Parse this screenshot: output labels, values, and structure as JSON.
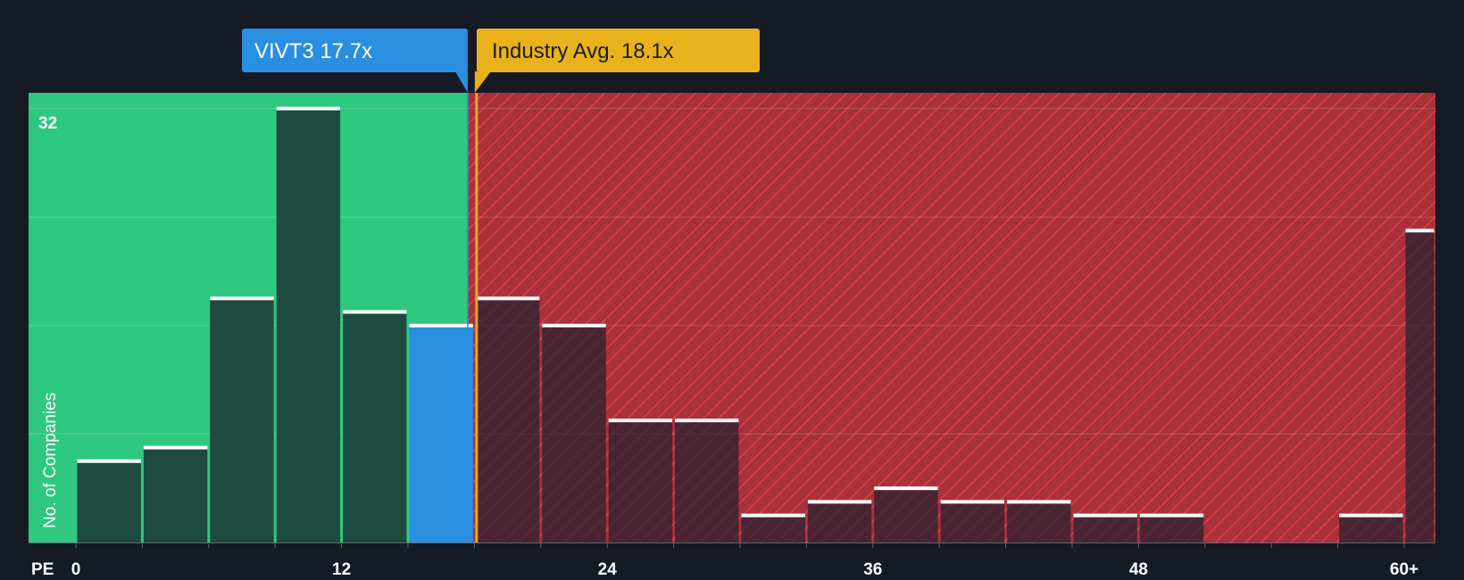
{
  "chart_data": {
    "type": "bar",
    "x_axis_label": "PE",
    "y_axis_label": "No. of Companies",
    "x_ticks": [
      "0",
      "12",
      "24",
      "36",
      "48",
      "60+"
    ],
    "y_max_label": "32",
    "ylim": [
      0,
      33
    ],
    "bin_width": 3,
    "bins": [
      {
        "x0": 0,
        "x1": 3,
        "value": 6
      },
      {
        "x0": 3,
        "x1": 6,
        "value": 7
      },
      {
        "x0": 6,
        "x1": 9,
        "value": 18
      },
      {
        "x0": 9,
        "x1": 12,
        "value": 32
      },
      {
        "x0": 12,
        "x1": 15,
        "value": 17
      },
      {
        "x0": 15,
        "x1": 18,
        "value": 16
      },
      {
        "x0": 18,
        "x1": 21,
        "value": 18
      },
      {
        "x0": 21,
        "x1": 24,
        "value": 16
      },
      {
        "x0": 24,
        "x1": 27,
        "value": 9
      },
      {
        "x0": 27,
        "x1": 30,
        "value": 9
      },
      {
        "x0": 30,
        "x1": 33,
        "value": 2
      },
      {
        "x0": 33,
        "x1": 36,
        "value": 3
      },
      {
        "x0": 36,
        "x1": 39,
        "value": 4
      },
      {
        "x0": 39,
        "x1": 42,
        "value": 3
      },
      {
        "x0": 42,
        "x1": 45,
        "value": 3
      },
      {
        "x0": 45,
        "x1": 48,
        "value": 2
      },
      {
        "x0": 48,
        "x1": 51,
        "value": 2
      },
      {
        "x0": 57,
        "x1": 60,
        "value": 2
      },
      {
        "x0": 60,
        "x1": 63,
        "value": 23
      }
    ],
    "company": {
      "label": "VIVT3 17.7x",
      "pe": 17.7
    },
    "industry": {
      "label": "Industry Avg. 18.1x",
      "pe": 18.1
    },
    "colors": {
      "background": "#151b23",
      "green_zone": "#2ec880",
      "green_bar": "#1e4a40",
      "company_bar": "#2a8fe0",
      "red_zone": "#a8313a",
      "red_bar": "#2a2232",
      "company_callout": "#2a8fe0",
      "industry_callout": "#e9b21a",
      "industry_line": "#e9a81a",
      "bar_cap": "#ffffff"
    }
  }
}
